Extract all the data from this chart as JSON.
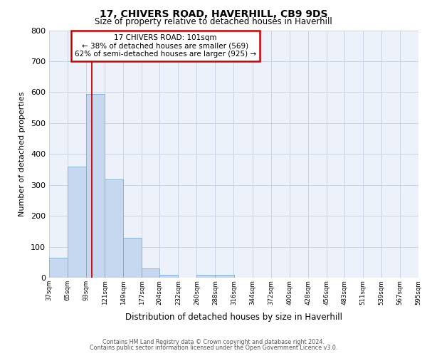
{
  "title1": "17, CHIVERS ROAD, HAVERHILL, CB9 9DS",
  "title2": "Size of property relative to detached houses in Haverhill",
  "xlabel": "Distribution of detached houses by size in Haverhill",
  "ylabel": "Number of detached properties",
  "bar_left_edges": [
    37,
    65,
    93,
    121,
    149,
    177,
    204,
    232,
    260,
    288,
    316,
    344,
    372,
    400,
    428,
    456,
    483,
    511,
    539,
    567
  ],
  "bar_widths": [
    28,
    28,
    28,
    28,
    28,
    27,
    28,
    28,
    28,
    28,
    28,
    28,
    28,
    28,
    28,
    27,
    28,
    28,
    28,
    28
  ],
  "bar_heights": [
    65,
    358,
    595,
    318,
    130,
    30,
    10,
    0,
    10,
    10,
    0,
    0,
    0,
    0,
    0,
    0,
    0,
    0,
    0,
    0
  ],
  "bar_color": "#c5d8ef",
  "bar_edge_color": "#7aadd4",
  "tick_labels": [
    "37sqm",
    "65sqm",
    "93sqm",
    "121sqm",
    "149sqm",
    "177sqm",
    "204sqm",
    "232sqm",
    "260sqm",
    "288sqm",
    "316sqm",
    "344sqm",
    "372sqm",
    "400sqm",
    "428sqm",
    "456sqm",
    "483sqm",
    "511sqm",
    "539sqm",
    "567sqm",
    "595sqm"
  ],
  "tick_positions": [
    37,
    65,
    93,
    121,
    149,
    177,
    204,
    232,
    260,
    288,
    316,
    344,
    372,
    400,
    428,
    456,
    483,
    511,
    539,
    567,
    595
  ],
  "ylim": [
    0,
    800
  ],
  "xlim": [
    37,
    595
  ],
  "yticks": [
    0,
    100,
    200,
    300,
    400,
    500,
    600,
    700,
    800
  ],
  "vline_x": 101,
  "vline_color": "#cc0000",
  "annotation_title": "17 CHIVERS ROAD: 101sqm",
  "annotation_line1": "← 38% of detached houses are smaller (569)",
  "annotation_line2": "62% of semi-detached houses are larger (925) →",
  "annotation_box_color": "#cc0000",
  "grid_color": "#c8d4e8",
  "bg_color": "#edf2fa",
  "footer1": "Contains HM Land Registry data © Crown copyright and database right 2024.",
  "footer2": "Contains public sector information licensed under the Open Government Licence v3.0."
}
